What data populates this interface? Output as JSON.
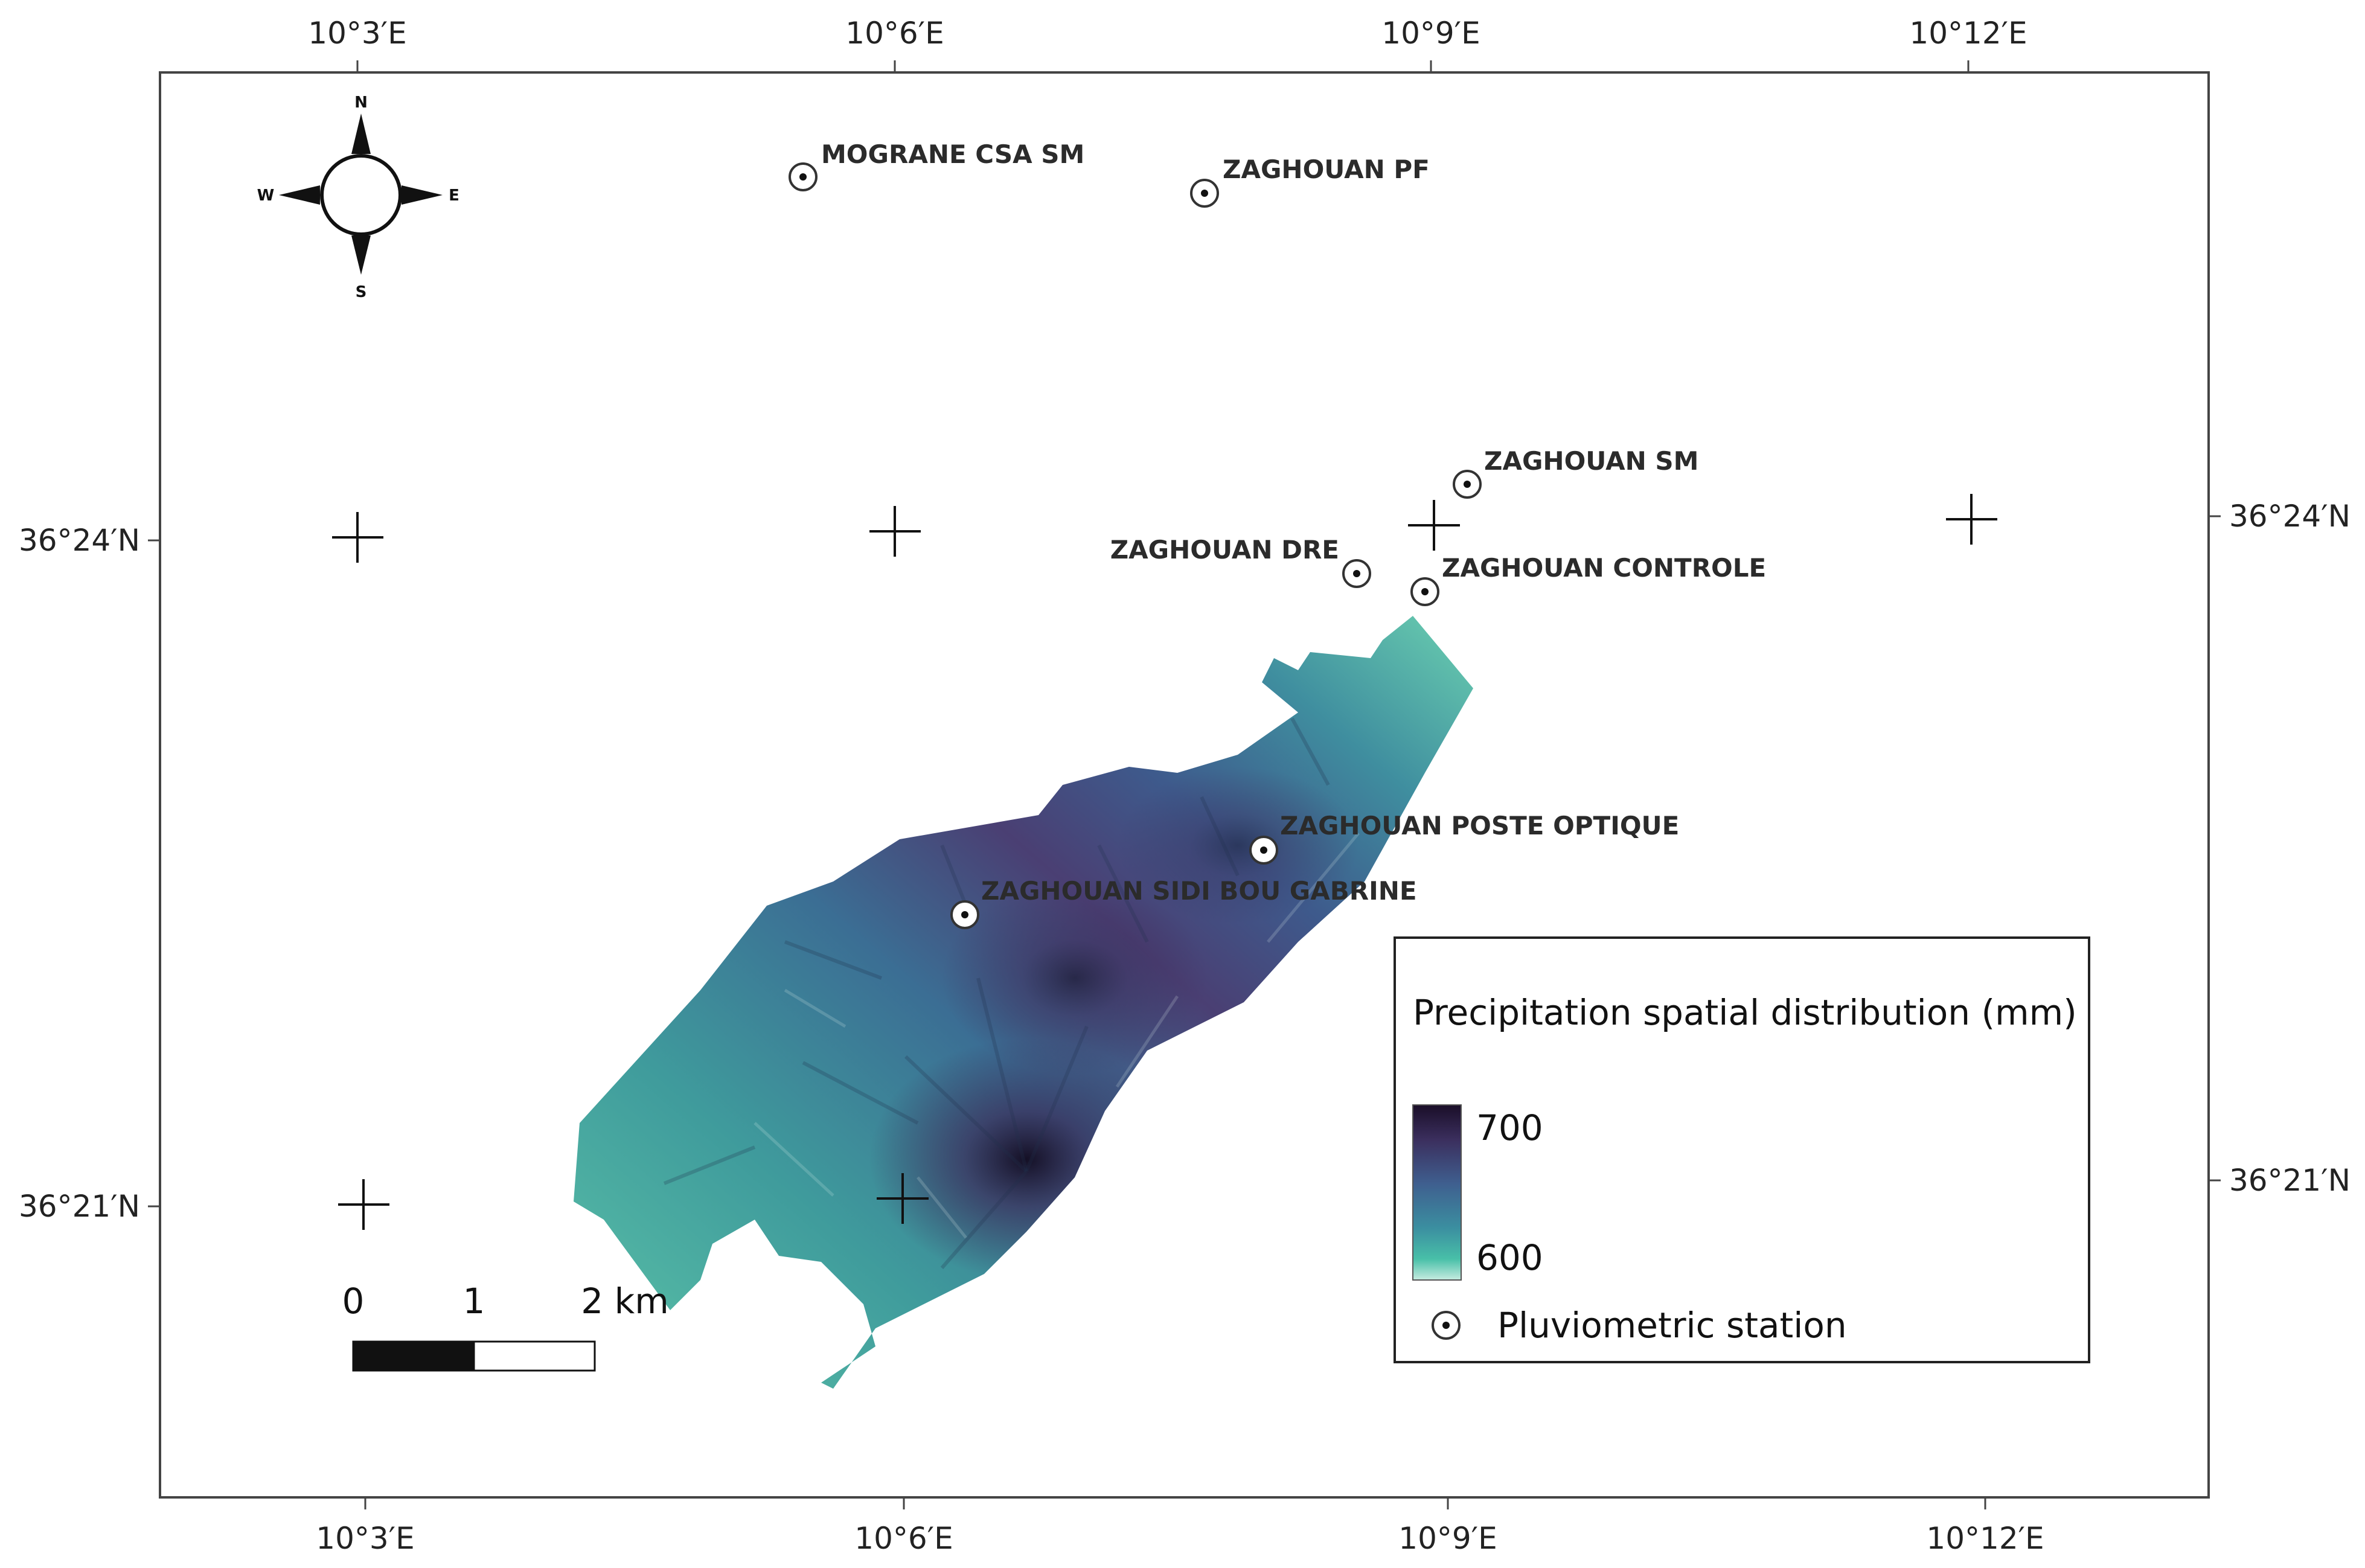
{
  "map": {
    "top_lon_labels": [
      "10°3′E",
      "10°6′E",
      "10°9′E",
      "10°12′E"
    ],
    "bottom_lon_labels": [
      "10°3′E",
      "10°6′E",
      "10°9′E",
      "10°12′E"
    ],
    "left_lat_labels": [
      "36°24′N",
      "36°21′N"
    ],
    "right_lat_labels": [
      "36°24′N",
      "36°21′N"
    ]
  },
  "compass": {
    "n": "N",
    "s": "S",
    "e": "E",
    "w": "W"
  },
  "stations": [
    {
      "name": "MOGRANE CSA SM"
    },
    {
      "name": "ZAGHOUAN PF"
    },
    {
      "name": "ZAGHOUAN SM"
    },
    {
      "name": "ZAGHOUAN DRE"
    },
    {
      "name": "ZAGHOUAN CONTROLE"
    },
    {
      "name": "ZAGHOUAN POSTE OPTIQUE"
    },
    {
      "name": "ZAGHOUAN SIDI BOU GABRINE"
    }
  ],
  "legend": {
    "title": "Precipitation spatial distribution (mm)",
    "max_label": "700",
    "min_label": "600",
    "station_label": "Pluviometric station",
    "ramp_colors": [
      "#1a0e28",
      "#3b2f5e",
      "#3f5f8f",
      "#3b8ea0",
      "#48bfa8",
      "#c6ece0"
    ]
  },
  "scale_bar": {
    "labels": [
      "0",
      "1",
      "2 km"
    ]
  }
}
